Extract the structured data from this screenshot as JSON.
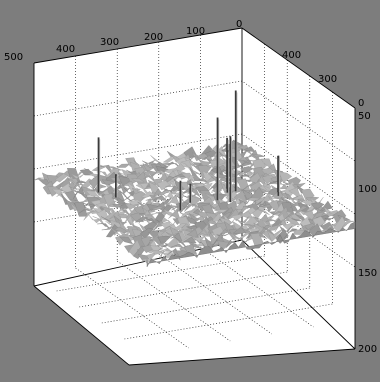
{
  "chart_data": {
    "type": "surface",
    "title": "",
    "grid": true,
    "colors": {
      "figure_background": "#7d7d7d",
      "axes_background": "#ffffff",
      "surface": "#a8a8a8"
    },
    "x_axis": {
      "ticks": [
        "500",
        "400",
        "300",
        "200",
        "100",
        "0"
      ],
      "range": [
        0,
        500
      ]
    },
    "y_axis": {
      "ticks": [
        "400",
        "300",
        "0"
      ],
      "range": [
        0,
        500
      ]
    },
    "z_axis": {
      "ticks": [
        "50",
        "100",
        "150",
        "200"
      ],
      "range": [
        0,
        200
      ],
      "direction": "reversed"
    },
    "surface": {
      "baseline_z": 110,
      "noise_amplitude": 6
    },
    "spikes": [
      {
        "x": 200,
        "y": 260,
        "height": 78
      },
      {
        "x": 180,
        "y": 280,
        "height": 62
      },
      {
        "x": 140,
        "y": 230,
        "height": 95
      },
      {
        "x": 150,
        "y": 210,
        "height": 48
      },
      {
        "x": 160,
        "y": 230,
        "height": 40
      },
      {
        "x": 70,
        "y": 290,
        "height": 38
      },
      {
        "x": 60,
        "y": 270,
        "height": 34
      },
      {
        "x": 410,
        "y": 120,
        "height": 52
      },
      {
        "x": 390,
        "y": 160,
        "height": 22
      },
      {
        "x": 300,
        "y": 280,
        "height": 28
      },
      {
        "x": 260,
        "y": 250,
        "height": 18
      }
    ]
  }
}
